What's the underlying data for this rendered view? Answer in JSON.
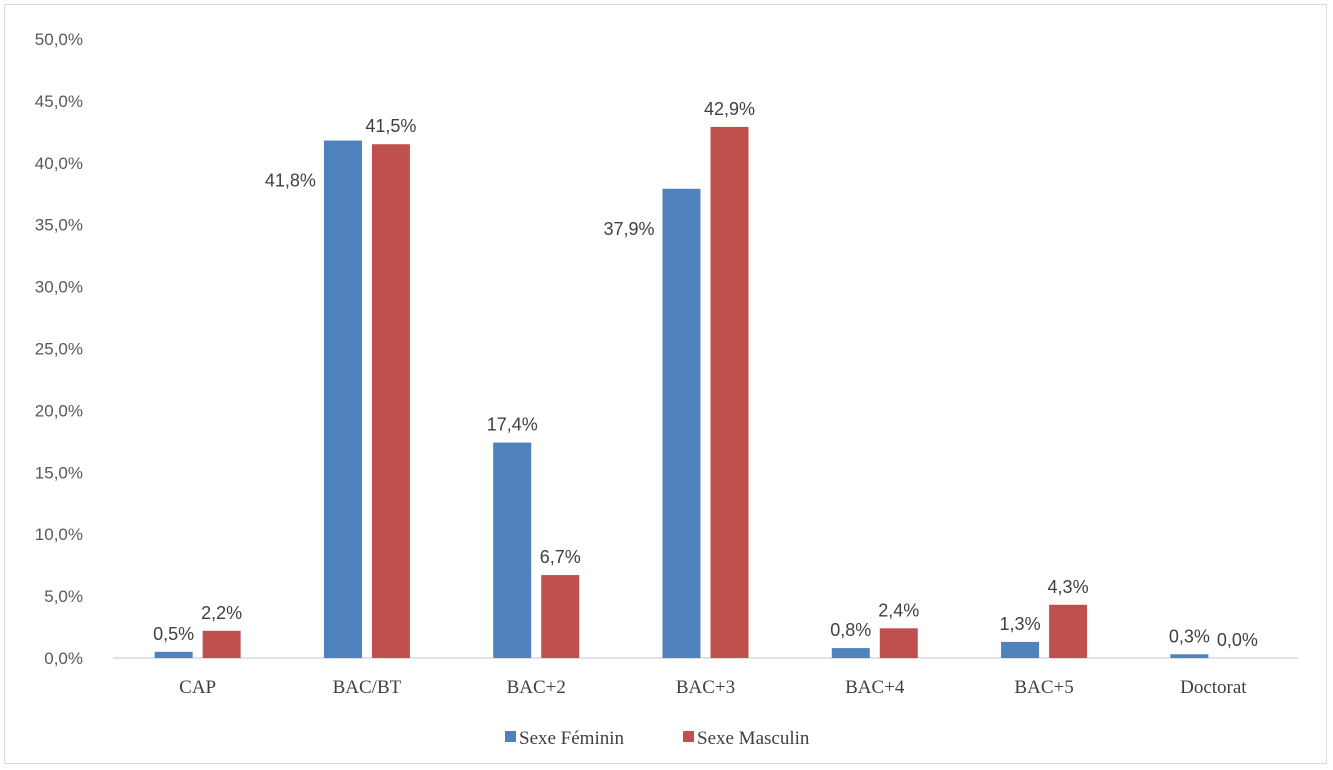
{
  "chart_data": {
    "type": "bar",
    "categories": [
      "CAP",
      "BAC/BT",
      "BAC+2",
      "BAC+3",
      "BAC+4",
      "BAC+5",
      "Doctorat"
    ],
    "series": [
      {
        "name": "Sexe Féminin",
        "color": "#4f81bd",
        "values": [
          0.5,
          41.8,
          17.4,
          37.9,
          0.8,
          1.3,
          0.3
        ],
        "labels": [
          "0,5%",
          "41,8%",
          "17,4%",
          "37,9%",
          "0,8%",
          "1,3%",
          "0,3%"
        ]
      },
      {
        "name": "Sexe Masculin",
        "color": "#c0504d",
        "values": [
          2.2,
          41.5,
          6.7,
          42.9,
          2.4,
          4.3,
          0.0
        ],
        "labels": [
          "2,2%",
          "41,5%",
          "6,7%",
          "42,9%",
          "2,4%",
          "4,3%",
          "0,0%"
        ]
      }
    ],
    "ylim": [
      0,
      50
    ],
    "yticks": [
      "0,0%",
      "5,0%",
      "10,0%",
      "15,0%",
      "20,0%",
      "25,0%",
      "30,0%",
      "35,0%",
      "40,0%",
      "45,0%",
      "50,0%"
    ],
    "grid": false,
    "legend": "bottom"
  }
}
